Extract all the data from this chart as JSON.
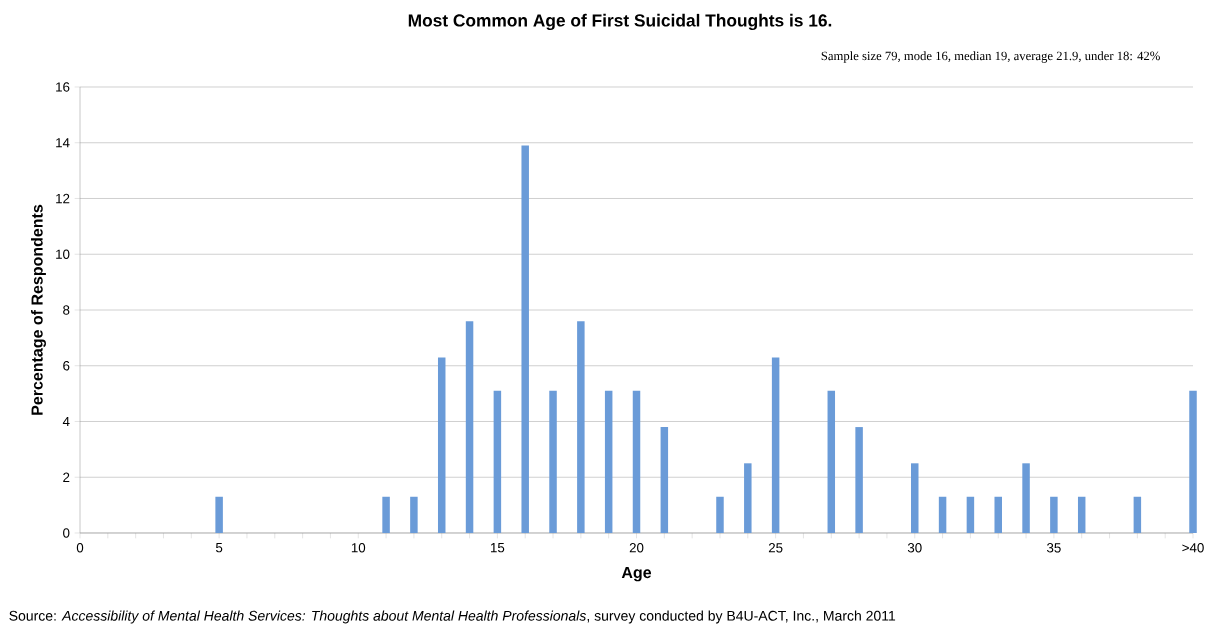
{
  "chart_data": {
    "type": "bar",
    "title": "Most Common Age of First Suicidal Thoughts is 16.",
    "subtitle": "Sample size 79, mode 16, median 19, average 21.9, under 18: 42%",
    "xlabel": "Age",
    "ylabel": "Percentage of Respondents",
    "annotations": [
      "Source: *Accessibility of Mental Health Services: Thoughts about Mental Health Professionals*, survey conducted by B4U-ACT, Inc., March 2011"
    ],
    "categories": [
      "0",
      null,
      null,
      null,
      null,
      "5",
      null,
      null,
      null,
      null,
      "10",
      null,
      null,
      null,
      null,
      "15",
      null,
      null,
      null,
      null,
      "20",
      null,
      null,
      null,
      null,
      "25",
      null,
      null,
      null,
      null,
      "30",
      null,
      null,
      null,
      null,
      "35",
      null,
      null,
      null,
      null,
      ">40"
    ],
    "values": [
      0,
      0,
      0,
      0,
      0,
      1.3,
      0,
      0,
      0,
      0,
      0,
      1.3,
      1.3,
      6.3,
      7.6,
      5.1,
      13.9,
      5.1,
      7.6,
      5.1,
      5.1,
      3.8,
      0,
      1.3,
      2.5,
      6.3,
      0,
      5.1,
      3.8,
      0,
      2.5,
      1.3,
      1.3,
      1.3,
      2.5,
      1.3,
      1.3,
      0,
      1.3,
      0,
      5.1
    ],
    "color": "#6a9bd8",
    "ylim": [
      0,
      16
    ],
    "yticks": [
      0,
      2,
      4,
      6,
      8,
      10,
      12,
      14,
      16
    ],
    "grid": "y"
  }
}
